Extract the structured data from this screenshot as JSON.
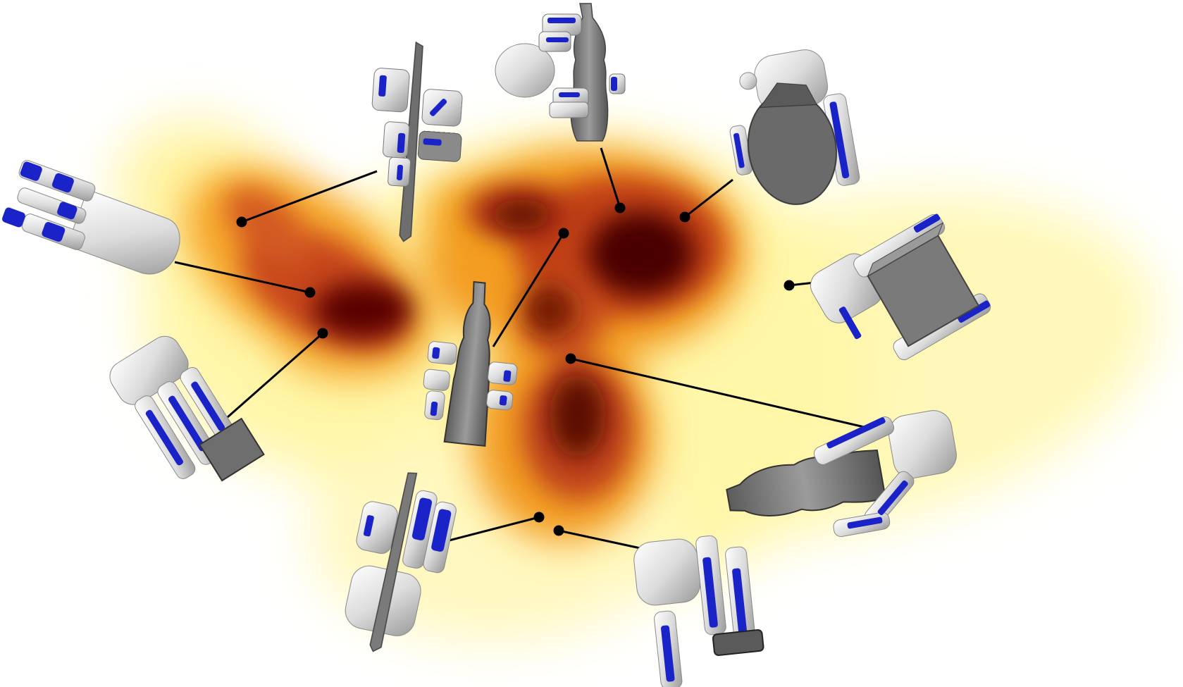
{
  "figure": {
    "kind": "grasp-embedding-density-map",
    "colors": {
      "background": "#ffffff",
      "density_low": "#fff7b0",
      "density_mid": "#f5a623",
      "density_high": "#d2561a",
      "density_peak": "#4a0400",
      "hand_link": "#f2f2f2",
      "hand_accent": "#1a23c8",
      "object": "#7a7a7a",
      "connector": "#000000"
    },
    "grasp_examples": [
      {
        "id": "knife-pinch",
        "object": "knife",
        "hand_icon": "robot-hand-icon",
        "object_icon": "knife-icon"
      },
      {
        "id": "bottle-top",
        "object": "bottle",
        "hand_icon": "robot-hand-icon",
        "object_icon": "bottle-icon"
      },
      {
        "id": "bottle-wrap-dark",
        "object": "bottle",
        "hand_icon": "robot-hand-icon",
        "object_icon": "bottle-icon"
      },
      {
        "id": "open-hand",
        "object": "none",
        "hand_icon": "robot-hand-icon",
        "object_icon": ""
      },
      {
        "id": "box-grasp",
        "object": "box",
        "hand_icon": "robot-hand-icon",
        "object_icon": "box-icon"
      },
      {
        "id": "box-power",
        "object": "box",
        "hand_icon": "robot-hand-icon",
        "object_icon": "box-icon"
      },
      {
        "id": "bottle-center",
        "object": "bottle",
        "hand_icon": "robot-hand-icon",
        "object_icon": "bottle-icon"
      },
      {
        "id": "bottle-side",
        "object": "bottle",
        "hand_icon": "robot-hand-icon",
        "object_icon": "bottle-icon"
      },
      {
        "id": "knife-wrap",
        "object": "knife",
        "hand_icon": "robot-hand-icon",
        "object_icon": "knife-icon"
      },
      {
        "id": "phone-grasp",
        "object": "phone",
        "hand_icon": "robot-hand-icon",
        "object_icon": "phone-icon"
      }
    ]
  }
}
